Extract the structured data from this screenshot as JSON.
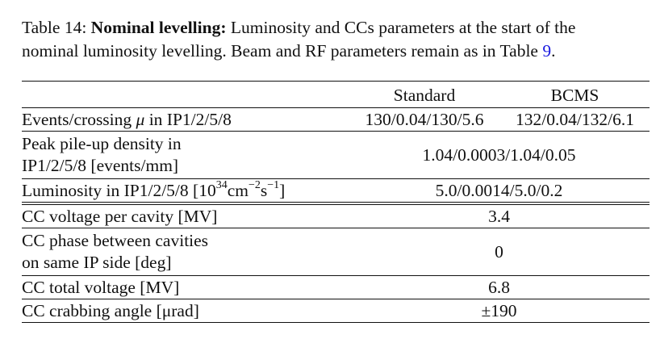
{
  "caption": {
    "label": "Table 14:",
    "bold_title": "Nominal levelling:",
    "text_line1": "Luminosity and CCs parameters at the start of the",
    "text_line2_prefix": "nominal luminosity levelling. Beam and RF parameters remain as in Table",
    "ref": "9",
    "text_line2_suffix": "."
  },
  "table": {
    "columns": [
      "Standard",
      "BCMS"
    ],
    "rows": [
      {
        "label": "Events/crossing",
        "mu": "μ",
        "label_suffix": "in IP1/2/5/8",
        "standard": "130/0.04/130/5.6",
        "bcms": "132/0.04/132/6.1"
      },
      {
        "label_line1": "Peak pile-up density in",
        "label_line2": "IP1/2/5/8 [events/mm]",
        "value": "1.04/0.0003/1.04/0.05"
      },
      {
        "label_prefix": "Luminosity in IP1/2/5/8 [10",
        "exp1": "34",
        "unit1": "cm",
        "exp2": "−2",
        "unit2": "s",
        "exp3": "−1",
        "label_end": "]",
        "value": "5.0/0.0014/5.0/0.2"
      },
      {
        "label": "CC voltage per cavity [MV]",
        "value": "3.4"
      },
      {
        "label_line1": "CC phase between cavities",
        "label_line2": "on same IP side [deg]",
        "value": "0"
      },
      {
        "label": "CC total voltage [MV]",
        "value": "6.8"
      },
      {
        "label": "CC crabbing angle [μrad]",
        "value": "±190"
      }
    ]
  }
}
